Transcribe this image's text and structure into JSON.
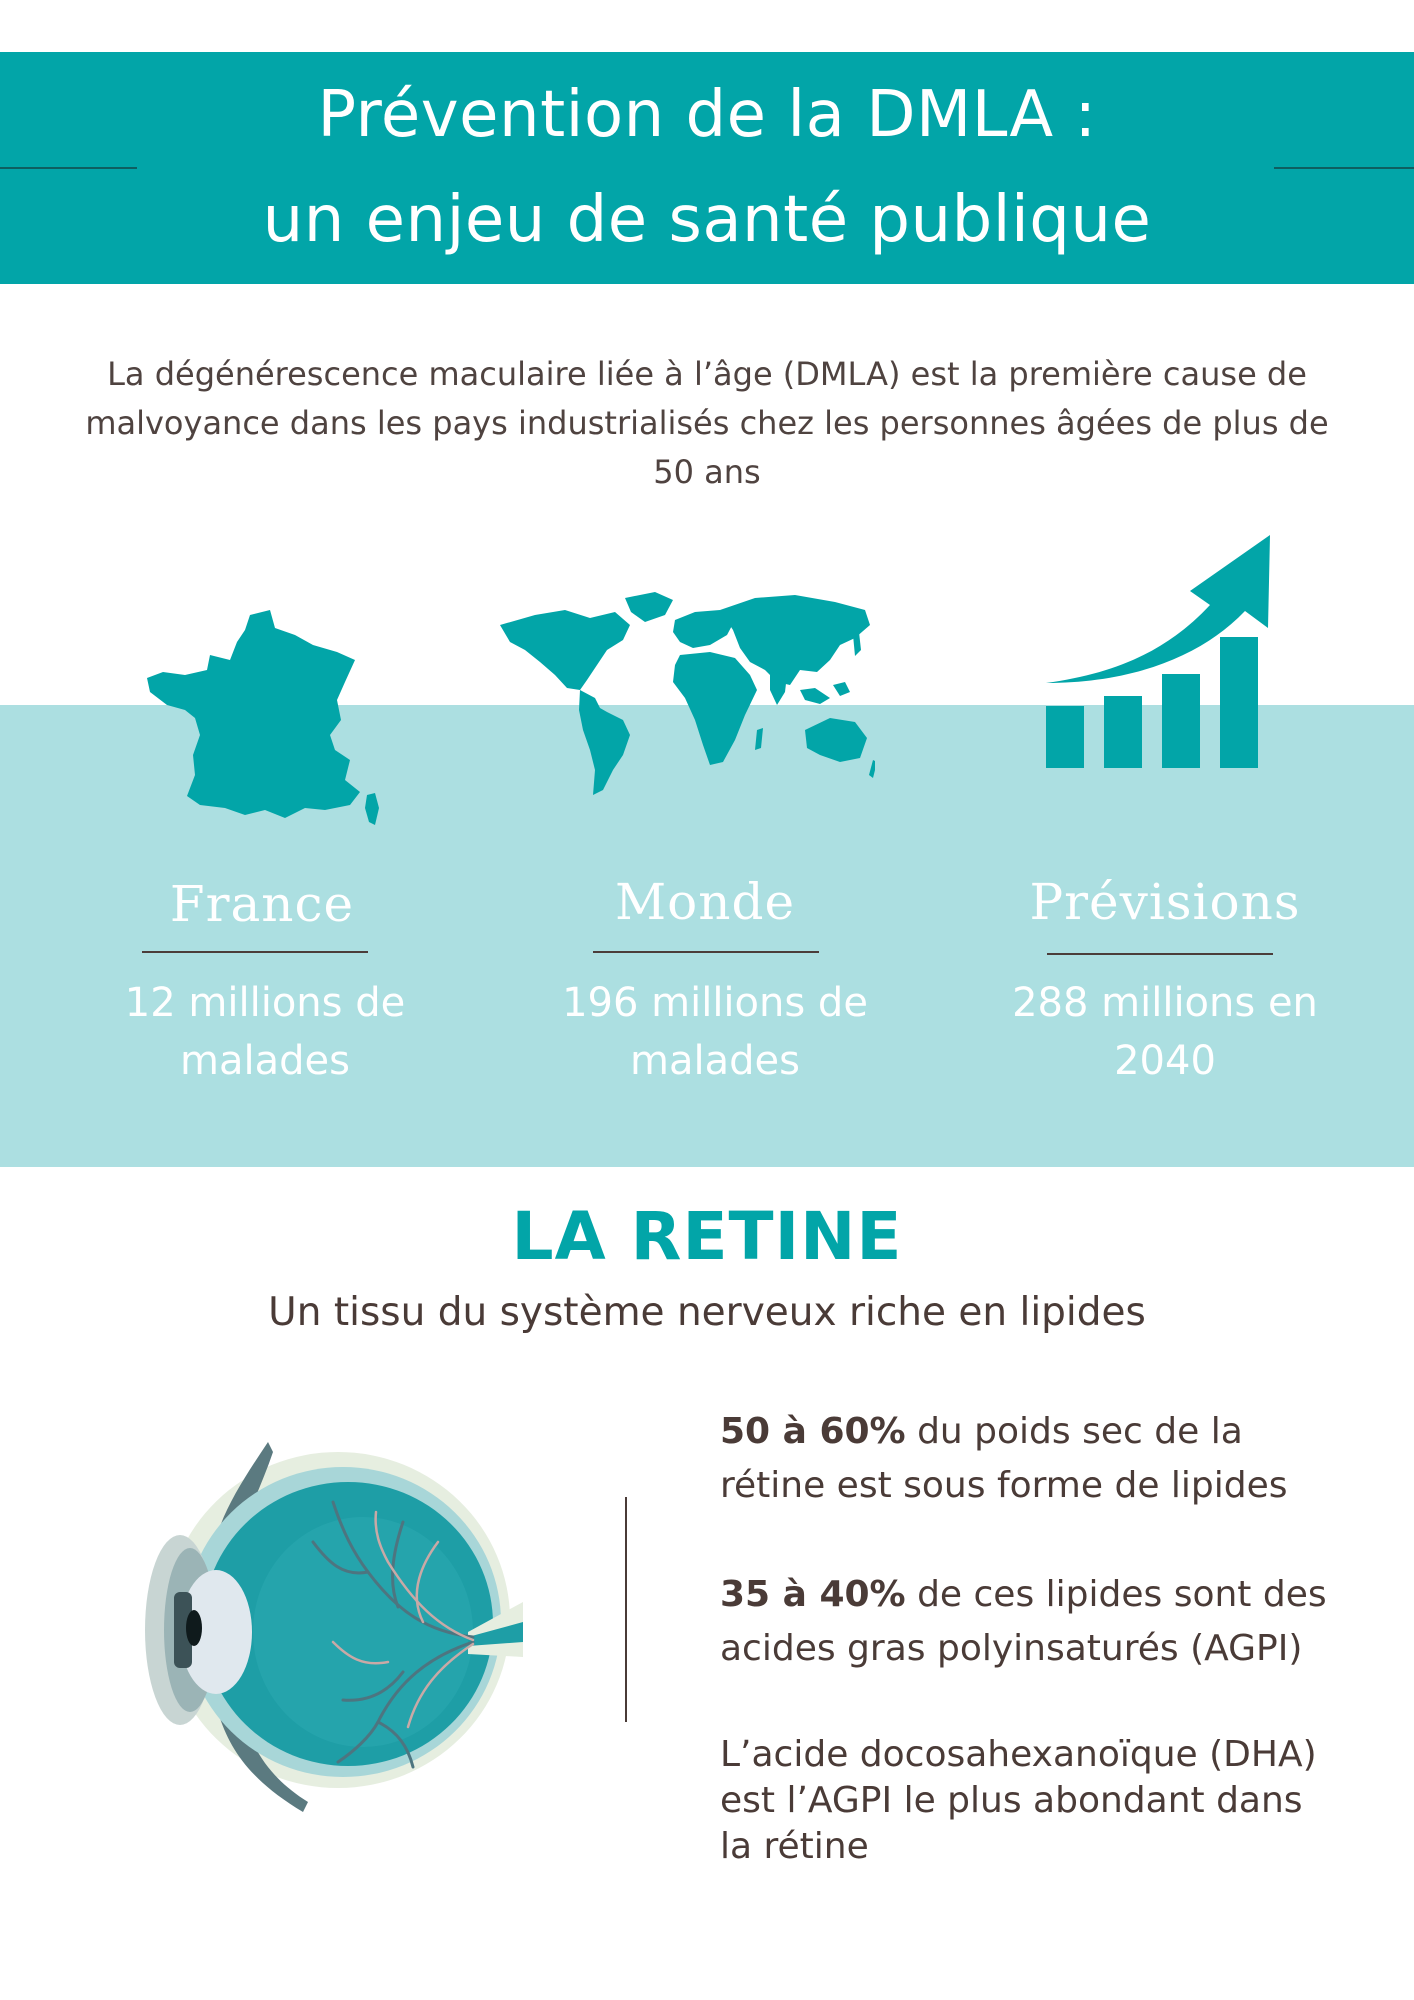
{
  "header": {
    "title_line1": "Prévention de la DMLA :",
    "title_line2": "un enjeu de santé publique",
    "background_color": "#02a5a8"
  },
  "intro": {
    "text": "La dégénérescence maculaire liée à l’âge (DMLA) est la première cause de malvoyance dans les pays industrialisés chez les personnes âgées de plus de 50 ans"
  },
  "stats": [
    {
      "title": "France",
      "text": "12 millions de malades",
      "icon": "france-map-icon"
    },
    {
      "title": "Monde",
      "text": "196 millions de malades",
      "icon": "world-map-icon"
    },
    {
      "title": "Prévisions",
      "text": "288 millions en 2040",
      "icon": "growth-chart-icon"
    }
  ],
  "retine": {
    "title": "LA RETINE",
    "subtitle": "Un tissu du système nerveux riche en lipides",
    "facts": [
      {
        "bold": "50 à 60%",
        "text": " du poids sec de la rétine est sous forme de lipides"
      },
      {
        "bold": "35 à 40%",
        "text": " de ces lipides sont des acides gras polyinsaturés (AGPI)"
      },
      {
        "bold": "",
        "text": "L’acide docosahexanoïque (DHA) est l’AGPI le plus abondant dans la rétine"
      }
    ],
    "illustration": "eye-anatomy-icon"
  },
  "colors": {
    "teal": "#02a5a8",
    "light_teal": "#acdfe1",
    "text_brown": "#4a3b37"
  }
}
